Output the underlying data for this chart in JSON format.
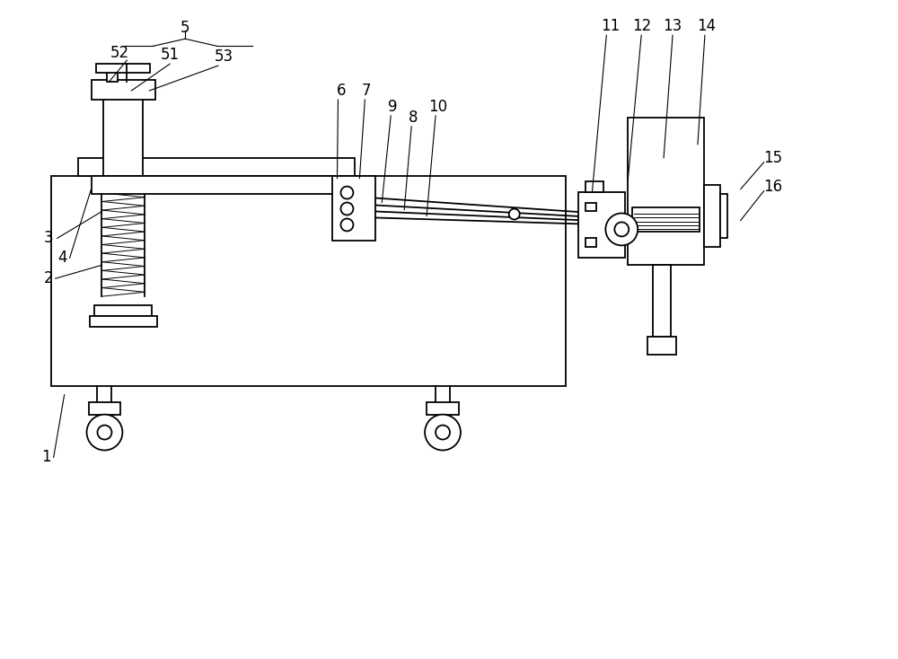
{
  "bg_color": "#ffffff",
  "line_color": "#000000",
  "lw": 1.3,
  "lw_thin": 0.8,
  "fig_w": 10.0,
  "fig_h": 7.34,
  "label_fs": 12
}
